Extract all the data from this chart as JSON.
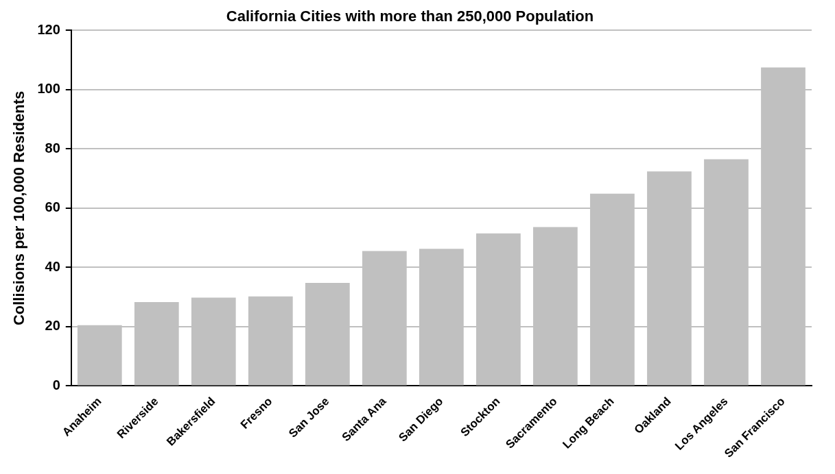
{
  "chart_data": {
    "type": "bar",
    "title": "California Cities with more than 250,000 Population",
    "ylabel": "Collisions per 100,000 Residents",
    "categories": [
      "Anaheim",
      "Riverside",
      "Bakersfield",
      "Fresno",
      "San Jose",
      "Santa Ana",
      "San Diego",
      "Stockton",
      "Sacramento",
      "Long Beach",
      "Oakland",
      "Los Angeles",
      "San Francisco"
    ],
    "values": [
      20.5,
      28.3,
      29.8,
      30.2,
      34.8,
      45.5,
      46.3,
      51.5,
      53.6,
      64.9,
      72.4,
      76.5,
      107.5
    ],
    "color": "#c0c0c0",
    "ylim": [
      0,
      120
    ],
    "yticks": [
      0,
      20,
      40,
      60,
      80,
      100,
      120
    ],
    "grid": "y"
  }
}
